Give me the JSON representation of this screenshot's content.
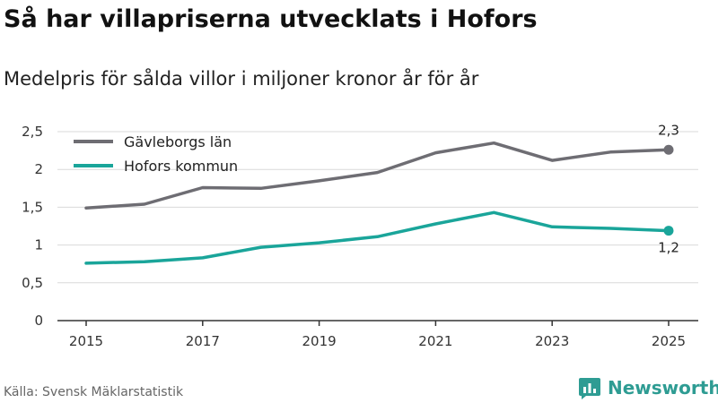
{
  "title": "Så har villapriserna utvecklats i Hofors",
  "subtitle": "Medelpris för sålda villor i miljoner kronor år för år",
  "source": "Källa: Svensk Mäklarstatistik",
  "brand": "Newsworthy",
  "colors": {
    "gavleborg": "#6e6d73",
    "hofors": "#1aa59a",
    "grid": "#d9d9d9",
    "axis": "#333333",
    "brand": "#2e9c93"
  },
  "chart_data": {
    "type": "line",
    "title": "Så har villapriserna utvecklats i Hofors",
    "subtitle": "Medelpris för sålda villor i miljoner kronor år för år",
    "xlabel": "",
    "ylabel": "",
    "ylim": [
      0,
      2.5
    ],
    "y_ticks": [
      0,
      0.5,
      1,
      1.5,
      2,
      2.5
    ],
    "y_tick_labels": [
      "0",
      "0,5",
      "1",
      "1,5",
      "2",
      "2,5"
    ],
    "x_ticks": [
      2015,
      2017,
      2019,
      2021,
      2023,
      2025
    ],
    "x_tick_labels": [
      "2015",
      "2017",
      "2019",
      "2021",
      "2023",
      "2025"
    ],
    "grid": true,
    "legend_position": "top-left",
    "x": [
      2015,
      2016,
      2017,
      2018,
      2019,
      2020,
      2021,
      2022,
      2023,
      2024,
      2025
    ],
    "series": [
      {
        "name": "Gävleborgs län",
        "color": "#6e6d73",
        "values": [
          1.49,
          1.54,
          1.76,
          1.75,
          1.85,
          1.96,
          2.22,
          2.35,
          2.12,
          2.23,
          2.26
        ],
        "end_label": "2,3"
      },
      {
        "name": "Hofors kommun",
        "color": "#1aa59a",
        "values": [
          0.76,
          0.78,
          0.83,
          0.97,
          1.03,
          1.11,
          1.28,
          1.43,
          1.24,
          1.22,
          1.19
        ],
        "end_label": "1,2"
      }
    ]
  }
}
